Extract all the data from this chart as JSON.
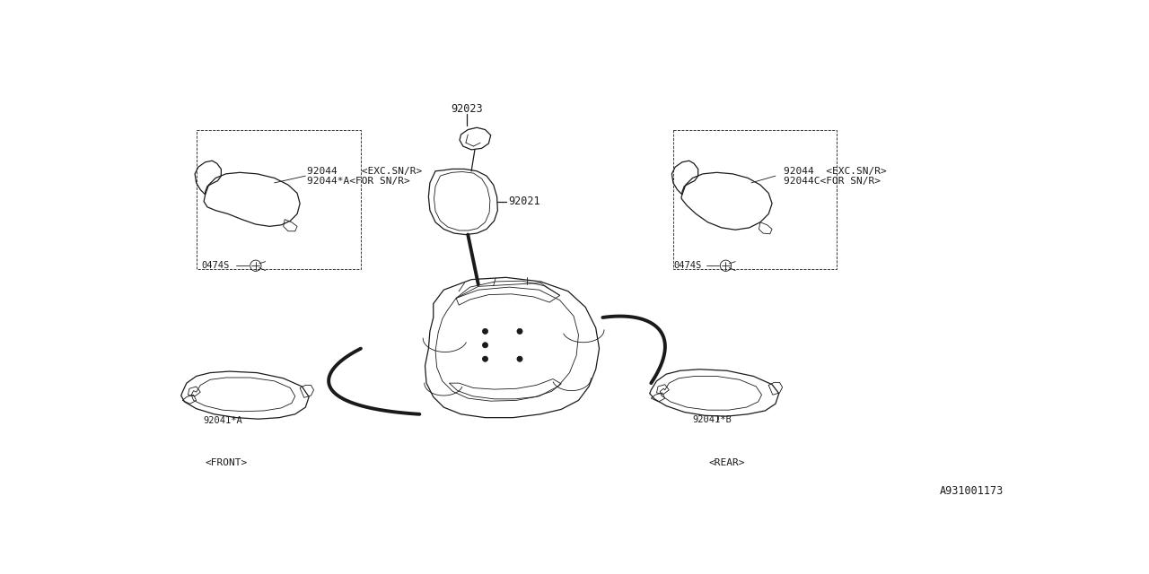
{
  "bg_color": "#ffffff",
  "line_color": "#1a1a1a",
  "diagram_id": "A931001173",
  "font_size_part": 8.5,
  "font_size_label": 8.0,
  "font_size_small": 7.5,
  "font_size_id": 8.5,
  "parts": {
    "mirror_label": "92021",
    "mount_label": "92023",
    "left_visor_labels": [
      "92044   <EXC.SN/R>",
      "92044*A<FOR SN/R>"
    ],
    "right_visor_labels": [
      "92044  <EXC.SN/R>",
      "92044C<FOR SN/R>"
    ],
    "left_screw": "0474S",
    "right_screw": "0474S",
    "front_handle": "92041*A",
    "rear_handle": "92041*B",
    "front_label": "<FRONT>",
    "rear_label": "<REAR>"
  }
}
